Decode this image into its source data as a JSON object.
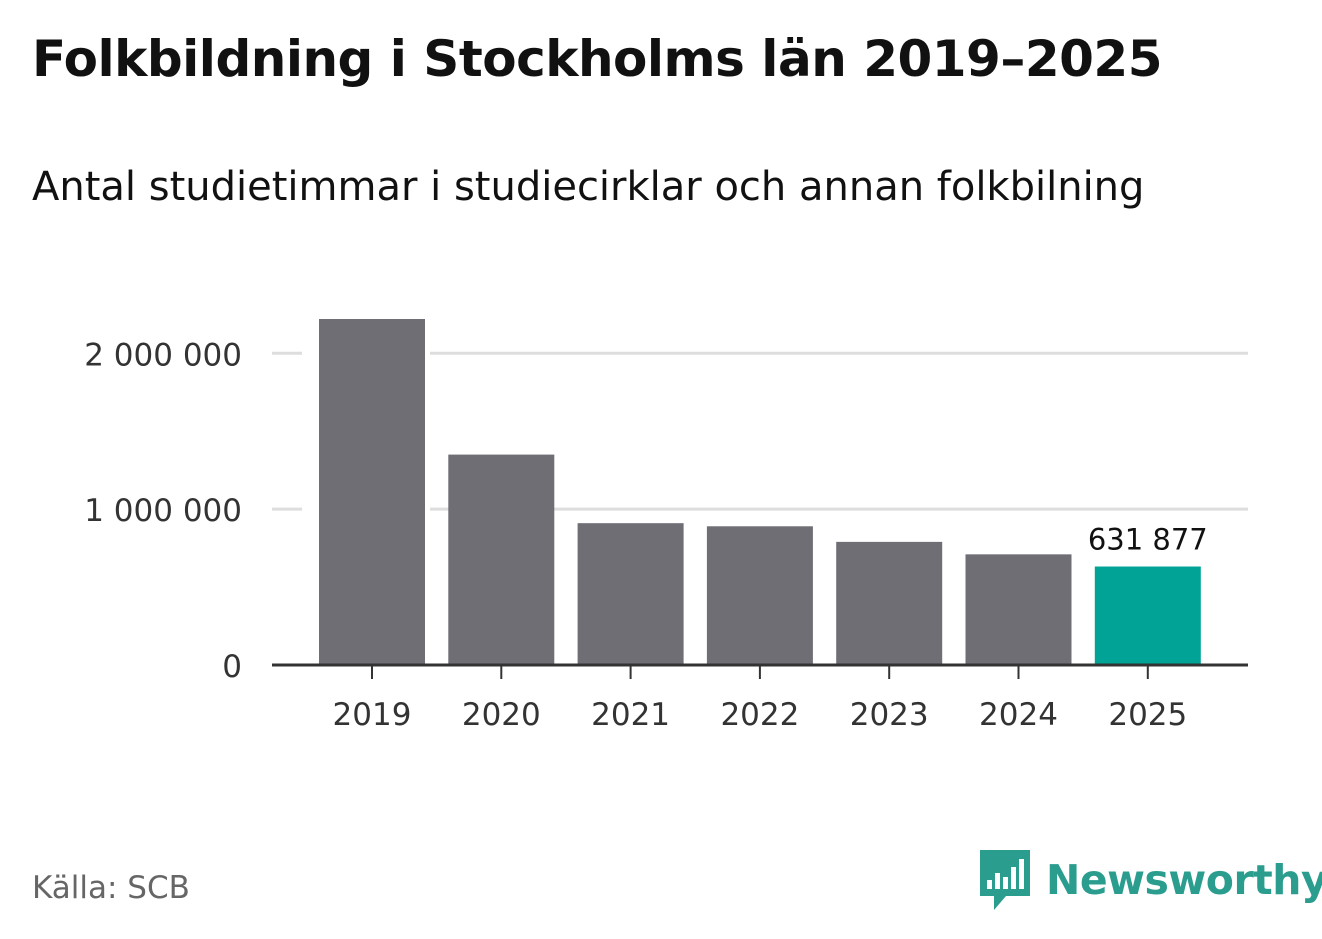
{
  "header": {
    "title": "Folkbildning i Stockholms län 2019–2025",
    "subtitle": "Antal studietimmar i studiecirklar och annan folkbilning"
  },
  "footer": {
    "source": "Källa: SCB",
    "brand": "Newsworthy"
  },
  "colors": {
    "bar": "#6f6e74",
    "highlight": "#00a396",
    "grid": "#dddddd",
    "axis": "#333333",
    "brand": "#2a9d8f"
  },
  "icons": {
    "brand_logo": "newsworthy-bar-chart-logo-icon"
  },
  "chart_data": {
    "type": "bar",
    "title": "Folkbildning i Stockholms län 2019–2025",
    "subtitle": "Antal studietimmar i studiecirklar och annan folkbilning",
    "xlabel": "",
    "ylabel": "",
    "categories": [
      "2019",
      "2020",
      "2021",
      "2022",
      "2023",
      "2024",
      "2025"
    ],
    "values": [
      2220000,
      1350000,
      910000,
      890000,
      790000,
      710000,
      631877
    ],
    "highlight_index": 6,
    "data_labels": [
      {
        "category": "2025",
        "text": "631 877"
      }
    ],
    "ylim": [
      0,
      2220000
    ],
    "yticks": [
      0,
      1000000,
      2000000
    ],
    "ytick_labels": [
      "0",
      "1 000 000",
      "2 000 000"
    ],
    "grid": true,
    "legend": "none"
  }
}
